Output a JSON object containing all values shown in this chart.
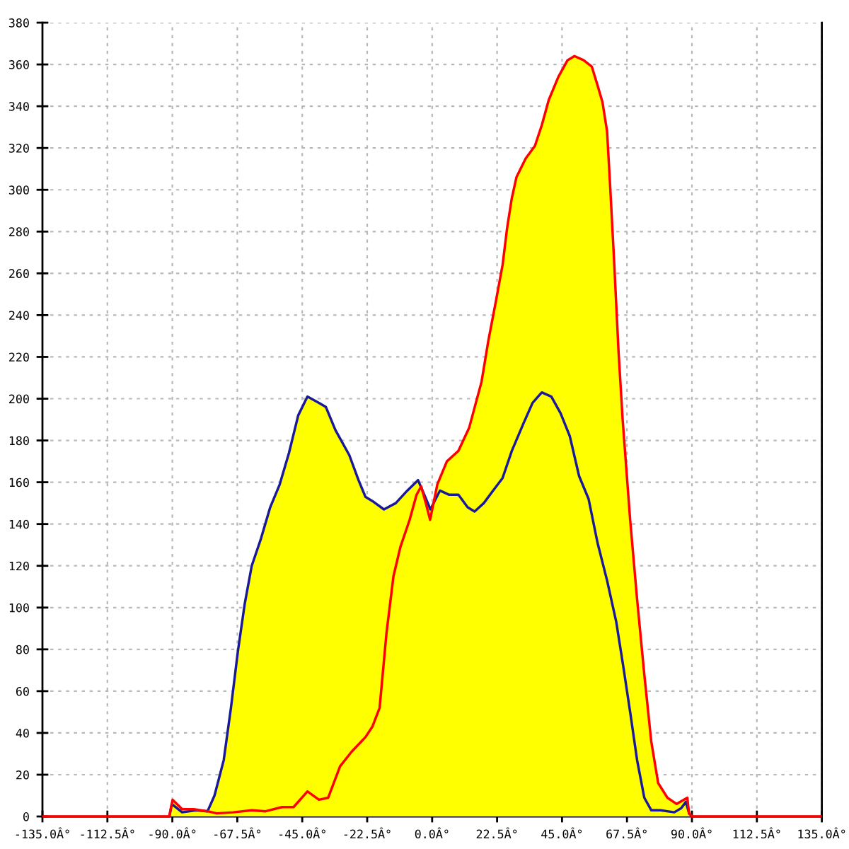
{
  "chart_data": {
    "type": "area",
    "xlim": [
      -135,
      135
    ],
    "xticks": [
      {
        "value": -135,
        "label": "-135.0Â°"
      },
      {
        "value": -112.5,
        "label": "-112.5Â°"
      },
      {
        "value": -90,
        "label": "-90.0Â°"
      },
      {
        "value": -67.5,
        "label": "-67.5Â°"
      },
      {
        "value": -45,
        "label": "-45.0Â°"
      },
      {
        "value": -22.5,
        "label": "-22.5Â°"
      },
      {
        "value": 0,
        "label": "0.0Â°"
      },
      {
        "value": 22.5,
        "label": "22.5Â°"
      },
      {
        "value": 45,
        "label": "45.0Â°"
      },
      {
        "value": 67.5,
        "label": "67.5Â°"
      },
      {
        "value": 90,
        "label": "90.0Â°"
      },
      {
        "value": 112.5,
        "label": "112.5Â°"
      },
      {
        "value": 135,
        "label": "135.0Â°"
      }
    ],
    "ylim": [
      0,
      380
    ],
    "yticks": [
      0,
      20,
      40,
      60,
      80,
      100,
      120,
      140,
      160,
      180,
      200,
      220,
      240,
      260,
      280,
      300,
      320,
      340,
      360,
      380
    ],
    "grid": true,
    "line_style": "solid",
    "series": [
      {
        "color": "#ffff00",
        "x": [
          -91.1,
          -89.9,
          -86.6,
          -82.6,
          -77.8,
          -75.4,
          -72.2,
          -69.7,
          -67.3,
          -64.9,
          -62.5,
          -59.3,
          -56.1,
          -52.8,
          -49.6,
          -46.4,
          -43.2,
          -39.2,
          -36.8,
          -33.5,
          -28.7,
          -25.5,
          -23.1,
          -20.7,
          -16.7,
          -12.6,
          -8.6,
          -4.9,
          -3.8,
          -2.7,
          -0.6,
          1.8,
          5.1,
          9.1,
          12.8,
          17.1,
          19.5,
          22.0,
          24.4,
          26.0,
          27.6,
          29.2,
          32.4,
          35.6,
          38.0,
          40.4,
          43.7,
          46.9,
          49.3,
          52.5,
          55.3,
          57.3,
          59.0,
          60.6,
          61.7,
          63.0,
          64.6,
          66.0,
          68.6,
          71.0,
          73.5,
          75.9,
          78.3,
          81.5,
          84.7,
          88.4,
          89.0,
          90
        ],
        "values": [
          0,
          8,
          3.5,
          3.5,
          2.5,
          10,
          27,
          52,
          79,
          102,
          120,
          133,
          148,
          159,
          174,
          192,
          201,
          198,
          196,
          185,
          173,
          161,
          153,
          151,
          147,
          150,
          156,
          161,
          158,
          154,
          147,
          159,
          170,
          175,
          186,
          208,
          228,
          246,
          264,
          282,
          296,
          306,
          315,
          321,
          331,
          343,
          354,
          362,
          364,
          362,
          359,
          350,
          342,
          328,
          301,
          267,
          222,
          190,
          142,
          104,
          68,
          36,
          16,
          9,
          6,
          9,
          1.5,
          0
        ]
      },
      {
        "type": "line",
        "color": "#1a1a99",
        "x": [
          -91,
          -90.2,
          -86.6,
          -81.8,
          -77.8,
          -75.4,
          -72.2,
          -69.7,
          -67.3,
          -64.9,
          -62.5,
          -59.3,
          -56.1,
          -52.8,
          -49.6,
          -46.4,
          -43.2,
          -39.2,
          -36.8,
          -33.5,
          -28.7,
          -25.5,
          -23.1,
          -20.7,
          -16.7,
          -12.6,
          -8.6,
          -4.9,
          -2.7,
          -0.6,
          2.7,
          5.9,
          9.1,
          12.3,
          14.7,
          17.9,
          21.1,
          24.4,
          27.6,
          31.6,
          34.8,
          38.0,
          41.3,
          44.5,
          47.7,
          50.9,
          54.2,
          57.3,
          60.6,
          63.8,
          66.2,
          68.6,
          71.0,
          73.5,
          75.9,
          79.1,
          83.9,
          86.3,
          87.9,
          89.0,
          90
        ],
        "values": [
          0,
          6,
          2,
          3,
          2.5,
          10,
          27,
          52,
          79,
          102,
          120,
          133,
          148,
          159,
          174,
          192,
          201,
          198,
          196,
          185,
          173,
          161,
          153,
          151,
          147,
          150,
          156,
          161,
          154,
          147,
          156,
          154,
          154,
          148,
          146,
          150,
          156,
          162,
          175,
          188,
          198,
          203,
          201,
          193,
          182,
          163,
          152,
          131,
          113,
          93,
          72,
          50,
          27,
          9,
          3,
          3,
          2,
          4,
          7,
          1.5,
          0
        ]
      },
      {
        "type": "line",
        "color": "#ff0000",
        "x": [
          -135,
          -91.1,
          -89.9,
          -86.6,
          -82.6,
          -77.8,
          -74.6,
          -68.9,
          -62.5,
          -57.7,
          -52.0,
          -48.0,
          -43.2,
          -39.2,
          -36.0,
          -31.9,
          -27.9,
          -23.1,
          -20.7,
          -18.2,
          -15.8,
          -13.4,
          -11.0,
          -7.8,
          -5.4,
          -3.8,
          -2.2,
          -0.7,
          1.8,
          5.1,
          9.1,
          12.8,
          17.1,
          19.5,
          22.0,
          24.4,
          26.0,
          27.6,
          29.2,
          32.4,
          35.6,
          38.0,
          40.4,
          43.7,
          46.9,
          49.3,
          52.5,
          55.3,
          57.3,
          59.0,
          60.6,
          61.7,
          63.0,
          64.6,
          66.0,
          68.6,
          71.0,
          73.5,
          75.9,
          78.3,
          81.5,
          84.7,
          88.4,
          89.0,
          90,
          135
        ],
        "values": [
          0,
          0,
          8,
          3.5,
          3.5,
          2.5,
          1.5,
          2,
          3,
          2.5,
          4.5,
          4.5,
          12,
          8,
          9,
          24,
          31,
          38,
          43,
          52,
          88,
          115,
          129,
          142,
          154,
          158,
          150,
          142,
          159,
          170,
          175,
          186,
          208,
          228,
          246,
          264,
          282,
          296,
          306,
          315,
          321,
          331,
          343,
          354,
          362,
          364,
          362,
          359,
          350,
          342,
          328,
          301,
          267,
          222,
          190,
          142,
          104,
          68,
          36,
          16,
          9,
          6,
          9,
          1.5,
          0,
          0
        ]
      }
    ]
  }
}
